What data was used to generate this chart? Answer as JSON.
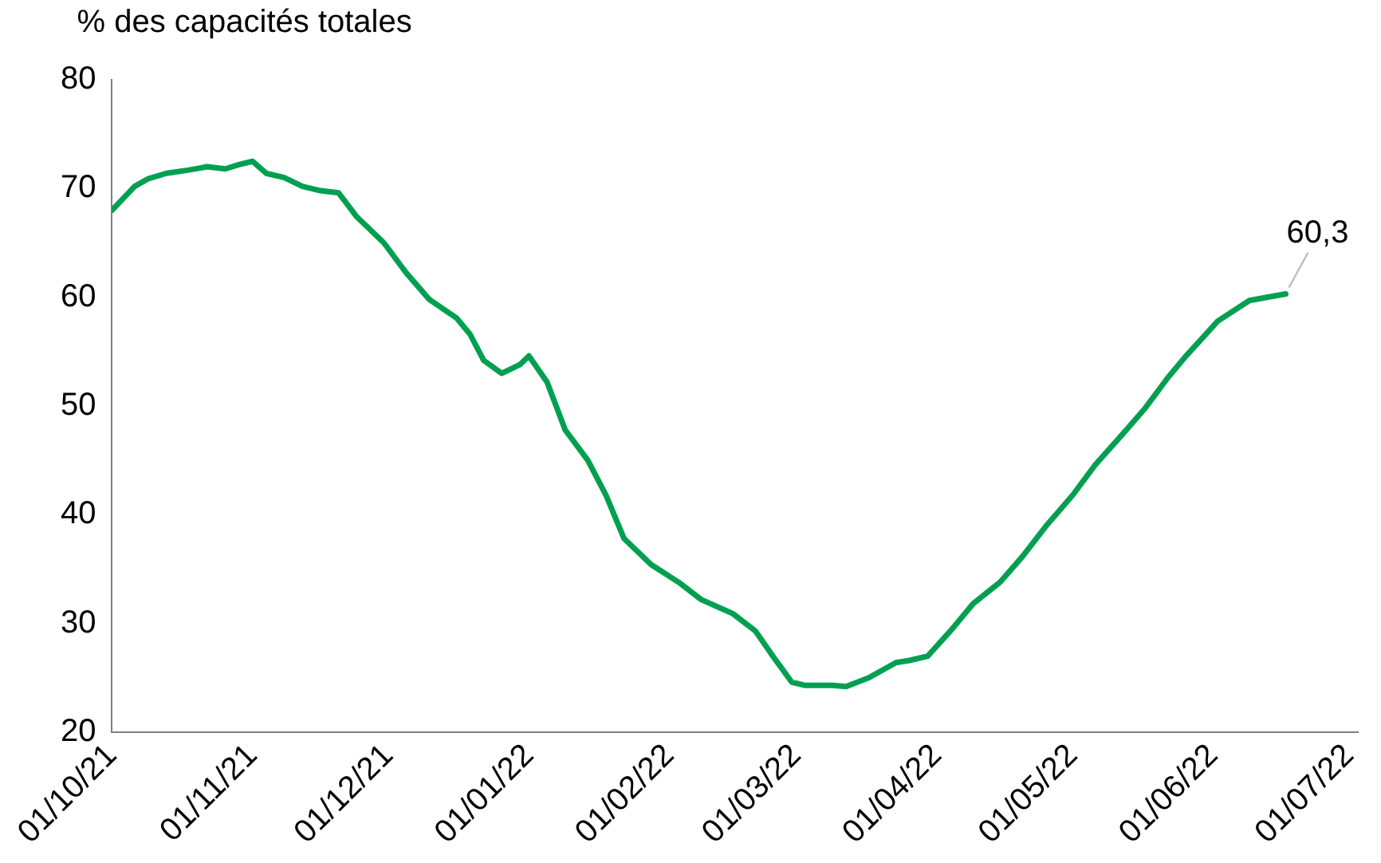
{
  "chart_data": {
    "type": "line",
    "ylabel": "% des capacités totales",
    "x": [
      "2021-10-01",
      "2021-10-06",
      "2021-10-09",
      "2021-10-13",
      "2021-10-18",
      "2021-10-22",
      "2021-10-26",
      "2021-10-29",
      "2021-11-01",
      "2021-11-04",
      "2021-11-08",
      "2021-11-12",
      "2021-11-16",
      "2021-11-20",
      "2021-11-24",
      "2021-11-30",
      "2021-12-05",
      "2021-12-10",
      "2021-12-16",
      "2021-12-19",
      "2021-12-22",
      "2021-12-26",
      "2021-12-30",
      "2022-01-01",
      "2022-01-05",
      "2022-01-09",
      "2022-01-14",
      "2022-01-18",
      "2022-01-22",
      "2022-01-28",
      "2022-02-03",
      "2022-02-08",
      "2022-02-15",
      "2022-02-20",
      "2022-02-24",
      "2022-02-28",
      "2022-03-03",
      "2022-03-09",
      "2022-03-12",
      "2022-03-17",
      "2022-03-23",
      "2022-03-26",
      "2022-03-30",
      "2022-04-04",
      "2022-04-09",
      "2022-04-15",
      "2022-04-20",
      "2022-04-25",
      "2022-05-01",
      "2022-05-06",
      "2022-05-12",
      "2022-05-17",
      "2022-05-22",
      "2022-05-26",
      "2022-06-02",
      "2022-06-09",
      "2022-06-17"
    ],
    "series": [
      {
        "color": "#00a050",
        "values": [
          68.0,
          70.2,
          70.9,
          71.4,
          71.7,
          72.0,
          71.8,
          72.2,
          72.5,
          71.4,
          71.0,
          70.2,
          69.8,
          69.6,
          67.4,
          65.0,
          62.2,
          59.8,
          58.1,
          56.6,
          54.2,
          53.0,
          53.8,
          54.6,
          52.2,
          47.8,
          45.0,
          41.8,
          37.8,
          35.4,
          33.8,
          32.2,
          30.9,
          29.3,
          26.9,
          24.6,
          24.3,
          24.3,
          24.2,
          25.0,
          26.4,
          26.6,
          27.0,
          29.3,
          31.8,
          33.8,
          36.2,
          38.9,
          41.8,
          44.6,
          47.4,
          49.8,
          52.6,
          54.6,
          57.8,
          59.7,
          60.3
        ]
      }
    ],
    "xlim": [
      "2021-10-01",
      "2022-07-03"
    ],
    "xticks": [
      {
        "value": "2021-10-01",
        "label": "01/10/21"
      },
      {
        "value": "2021-11-01",
        "label": "01/11/21"
      },
      {
        "value": "2021-12-01",
        "label": "01/12/21"
      },
      {
        "value": "2022-01-01",
        "label": "01/01/22"
      },
      {
        "value": "2022-02-01",
        "label": "01/02/22"
      },
      {
        "value": "2022-03-01",
        "label": "01/03/22"
      },
      {
        "value": "2022-04-01",
        "label": "01/04/22"
      },
      {
        "value": "2022-05-01",
        "label": "01/05/22"
      },
      {
        "value": "2022-06-01",
        "label": "01/06/22"
      },
      {
        "value": "2022-07-01",
        "label": "01/07/22"
      }
    ],
    "ylim": [
      20,
      80
    ],
    "yticks": [
      20,
      30,
      40,
      50,
      60,
      70,
      80
    ],
    "grid": false,
    "legend": false,
    "marker": "none",
    "line_style": "solid",
    "annotations": [
      {
        "text": "60,3",
        "x": "2022-06-17",
        "y": 60.3
      }
    ]
  }
}
